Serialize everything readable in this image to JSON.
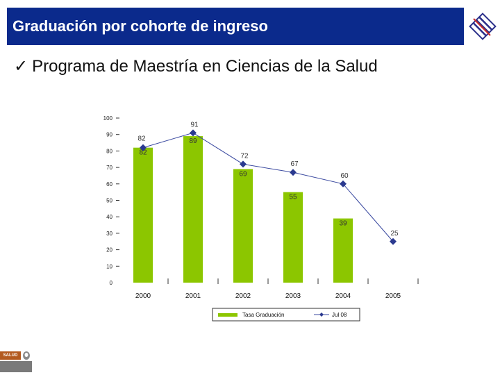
{
  "header": {
    "title": "Graduación por cohorte de ingreso"
  },
  "subtitle": {
    "check": "✓",
    "text": "Programa de Maestría en Ciencias de la Salud"
  },
  "colors": {
    "title_bar": "#0b2a8c",
    "bar": "#8cc600",
    "line": "#3b4aa0",
    "marker": "#2b3a90"
  },
  "footer": {
    "label": "SALUD"
  },
  "chart_data": {
    "type": "bar",
    "categories": [
      "2000",
      "2001",
      "2002",
      "2003",
      "2004",
      "2005"
    ],
    "series": [
      {
        "name": "Tasa Graduación",
        "type": "bar",
        "values": [
          82,
          89,
          69,
          55,
          39,
          null
        ],
        "labels": [
          "82",
          "89",
          "69",
          "55",
          "39",
          ""
        ]
      },
      {
        "name": "Jul 08",
        "type": "line",
        "values": [
          82,
          91,
          72,
          67,
          60,
          25
        ],
        "labels": [
          "",
          "91",
          "72",
          "67",
          "60",
          "25"
        ]
      }
    ],
    "ylim": [
      0,
      100
    ],
    "yticks": [
      "0",
      "10",
      "20",
      "30",
      "40",
      "50",
      "60",
      "70",
      "80",
      "90",
      "100"
    ],
    "legend": [
      "Tasa Graduación",
      "Jul 08"
    ],
    "legend_position": "bottom"
  }
}
